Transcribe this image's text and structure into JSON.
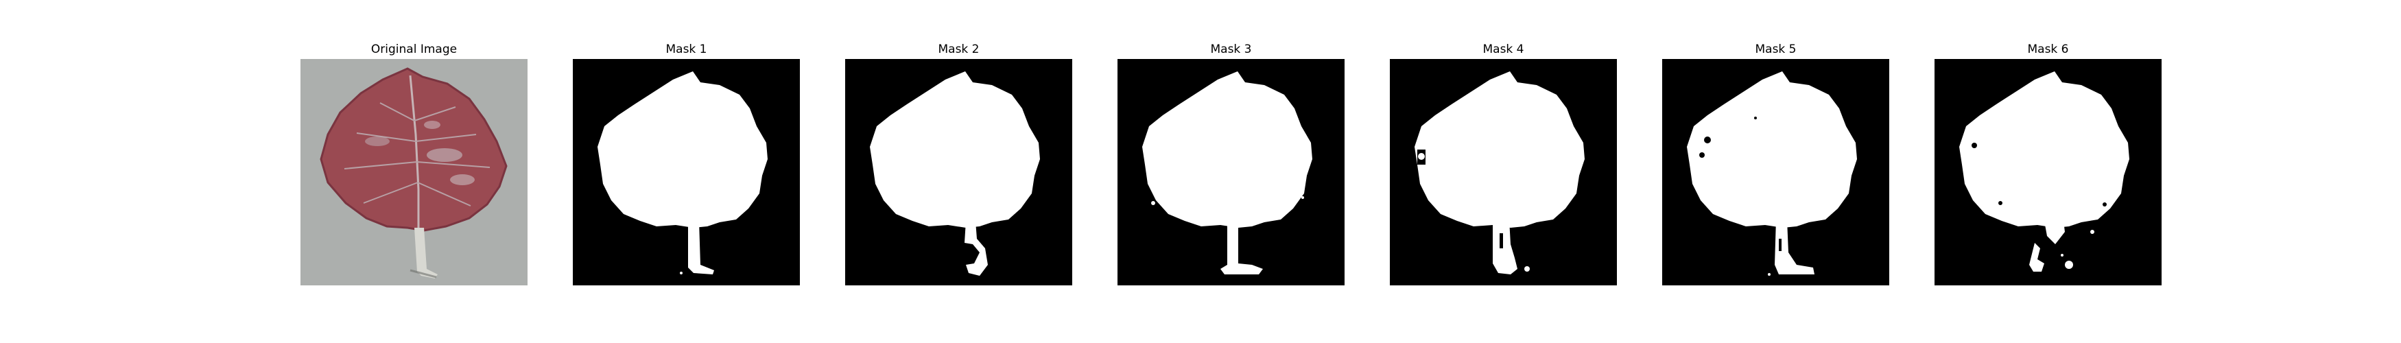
{
  "panels": [
    {
      "title": "Original Image",
      "kind": "photo"
    },
    {
      "title": "Mask 1",
      "kind": "mask"
    },
    {
      "title": "Mask 2",
      "kind": "mask"
    },
    {
      "title": "Mask 3",
      "kind": "mask"
    },
    {
      "title": "Mask 4",
      "kind": "mask"
    },
    {
      "title": "Mask 5",
      "kind": "mask"
    },
    {
      "title": "Mask 6",
      "kind": "mask"
    }
  ],
  "colors": {
    "mask_background": "#000000",
    "mask_foreground": "#ffffff",
    "photo_background": "#a7aaa8",
    "leaf": "#9a4a52",
    "leaf_dark": "#7a3440",
    "stem": "#d8d8d2"
  }
}
